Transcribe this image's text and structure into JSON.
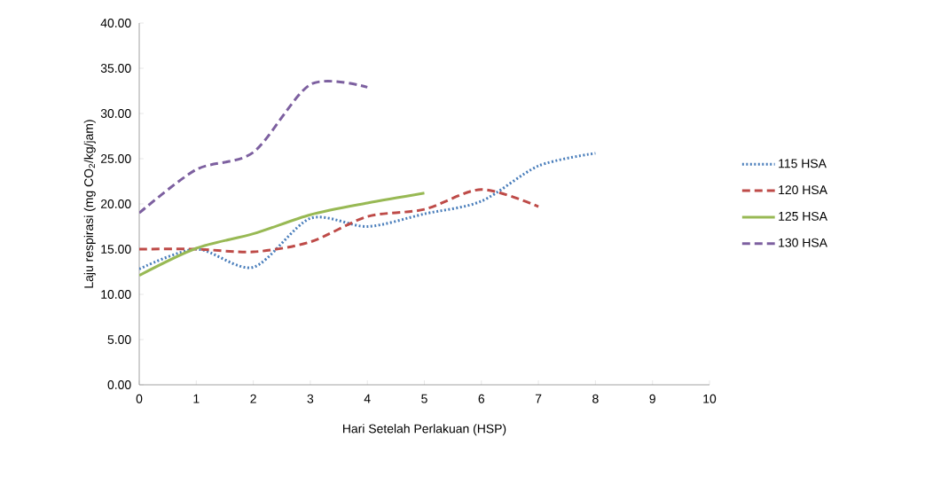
{
  "chart_data": {
    "type": "line",
    "xlabel": "Hari Setelah Perlakuan (HSP)",
    "ylabel": "Laju respirasi (mg CO$_{2}$/kg/jam)",
    "xlim": [
      0,
      10
    ],
    "xticks": [
      0,
      1,
      2,
      3,
      4,
      5,
      6,
      7,
      8,
      9,
      10
    ],
    "ylim": [
      0,
      40
    ],
    "yticks": [
      {
        "value": 0,
        "label": "0.00"
      },
      {
        "value": 5,
        "label": "5.00"
      },
      {
        "value": 10,
        "label": "10.00"
      },
      {
        "value": 15,
        "label": "15.00"
      },
      {
        "value": 20,
        "label": "20.00"
      },
      {
        "value": 25,
        "label": "25.00"
      },
      {
        "value": 30,
        "label": "30.00"
      },
      {
        "value": 35,
        "label": "35.00"
      },
      {
        "value": 40,
        "label": "40.00"
      }
    ],
    "grid": false,
    "legend": "right",
    "marker": "none",
    "series": [
      {
        "name": "115 HSA",
        "color": "#4a7ebb",
        "line_style": "dotted",
        "x": [
          0,
          1,
          2,
          3,
          4,
          5,
          6,
          7,
          8
        ],
        "values": [
          12.8,
          15.0,
          13.0,
          18.4,
          17.5,
          18.9,
          20.3,
          24.2,
          25.6
        ]
      },
      {
        "name": "120 HSA",
        "color": "#be4b48",
        "line_style": "dashed",
        "x": [
          0,
          1,
          2,
          3,
          4,
          5,
          6,
          7
        ],
        "values": [
          15.0,
          15.0,
          14.7,
          15.8,
          18.6,
          19.4,
          21.6,
          19.7
        ]
      },
      {
        "name": "125 HSA",
        "color": "#98b954",
        "line_style": "solid",
        "x": [
          0,
          1,
          2,
          3,
          4,
          5
        ],
        "values": [
          12.1,
          15.1,
          16.7,
          18.8,
          20.1,
          21.2
        ]
      },
      {
        "name": "130 HSA",
        "color": "#7d60a0",
        "line_style": "dashed",
        "x": [
          0,
          1,
          2,
          3,
          4
        ],
        "values": [
          19.0,
          23.8,
          25.7,
          33.2,
          32.9
        ]
      }
    ]
  }
}
